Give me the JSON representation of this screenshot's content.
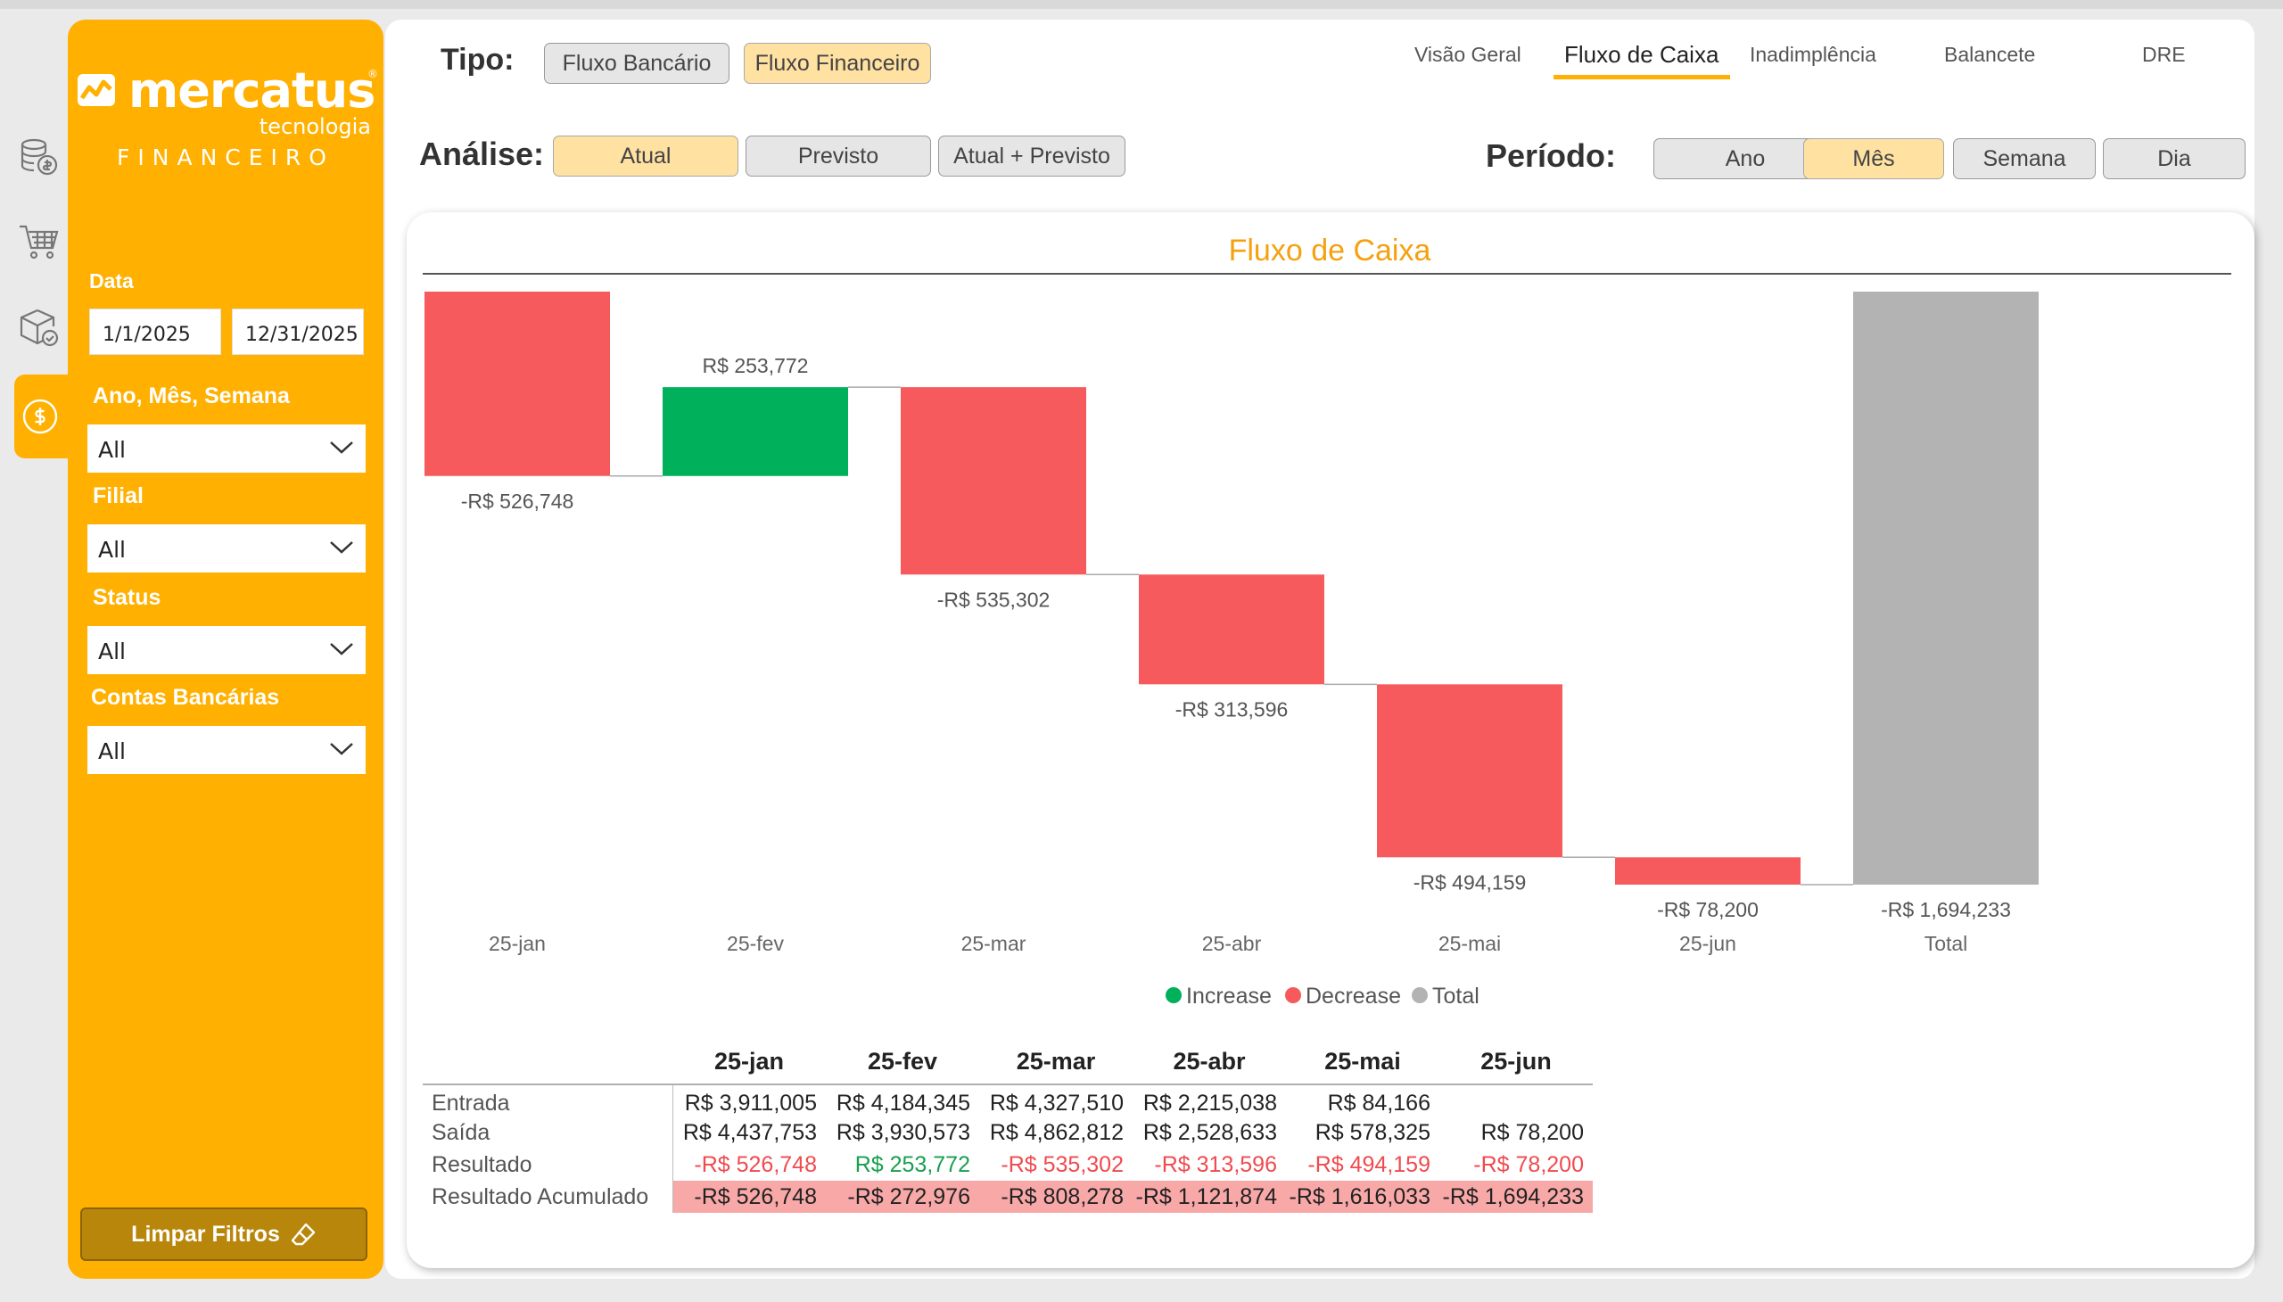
{
  "brand": {
    "wordmark": "mercatus",
    "registered": "®",
    "subtitle": "tecnologia",
    "department": "FINANCEIRO"
  },
  "rail": {
    "icons": [
      "coins-stack-icon",
      "shopping-cart-icon",
      "box-check-icon",
      "dollar-circle-icon"
    ]
  },
  "filters": {
    "date_label": "Data",
    "date_start": "1/1/2025",
    "date_end": "12/31/2025",
    "period_label": "Ano, Mês, Semana",
    "period_value": "All",
    "branch_label": "Filial",
    "branch_value": "All",
    "status_label": "Status",
    "status_value": "All",
    "accounts_label": "Contas Bancárias",
    "accounts_value": "All",
    "clear_label": "Limpar Filtros"
  },
  "controls": {
    "tipo_label": "Tipo:",
    "tipo_options": [
      "Fluxo Bancário",
      "Fluxo Financeiro"
    ],
    "tipo_selected": "Fluxo Financeiro",
    "analise_label": "Análise:",
    "analise_options": [
      "Atual",
      "Previsto",
      "Atual + Previsto"
    ],
    "analise_selected": "Atual",
    "periodo_label": "Período:",
    "periodo_options": [
      "Ano",
      "Mês",
      "Semana",
      "Dia"
    ],
    "periodo_selected": "Mês"
  },
  "nav": {
    "tabs": [
      "Visão Geral",
      "Fluxo de Caixa",
      "Inadimplência",
      "Balancete",
      "DRE"
    ],
    "active": "Fluxo de Caixa"
  },
  "colors": {
    "brand": "#ffb000",
    "increase": "#00b05a",
    "decrease": "#f65a5c",
    "total": "#b3b3b3",
    "title": "#f5a10f"
  },
  "chart_data": {
    "type": "waterfall",
    "title": "Fluxo de Caixa",
    "categories": [
      "25-jan",
      "25-fev",
      "25-mar",
      "25-abr",
      "25-mai",
      "25-jun",
      "Total"
    ],
    "values": [
      -526748,
      253772,
      -535302,
      -313596,
      -494159,
      -78200,
      -1694233
    ],
    "kinds": [
      "decrease",
      "increase",
      "decrease",
      "decrease",
      "decrease",
      "decrease",
      "total"
    ],
    "labels": [
      "-R$ 526,748",
      "R$ 253,772",
      "-R$ 535,302",
      "-R$ 313,596",
      "-R$ 494,159",
      "-R$ 78,200",
      "-R$ 1,694,233"
    ],
    "legend": [
      "Increase",
      "Decrease",
      "Total"
    ],
    "legend_position": "bottom-center"
  },
  "table": {
    "columns": [
      "25-jan",
      "25-fev",
      "25-mar",
      "25-abr",
      "25-mai",
      "25-jun"
    ],
    "rows": [
      {
        "label": "Entrada",
        "values": [
          "R$ 3,911,005",
          "R$ 4,184,345",
          "R$ 4,327,510",
          "R$ 2,215,038",
          "R$ 84,166",
          ""
        ]
      },
      {
        "label": "Saída",
        "values": [
          "R$ 4,437,753",
          "R$ 3,930,573",
          "R$ 4,862,812",
          "R$ 2,528,633",
          "R$ 578,325",
          "R$ 78,200"
        ]
      },
      {
        "label": "Resultado",
        "values": [
          "-R$ 526,748",
          "R$ 253,772",
          "-R$ 535,302",
          "-R$ 313,596",
          "-R$ 494,159",
          "-R$ 78,200"
        ]
      },
      {
        "label": "Resultado Acumulado",
        "values": [
          "-R$ 526,748",
          "-R$ 272,976",
          "-R$ 808,278",
          "-R$ 1,121,874",
          "-R$ 1,616,033",
          "-R$ 1,694,233"
        ]
      }
    ]
  }
}
